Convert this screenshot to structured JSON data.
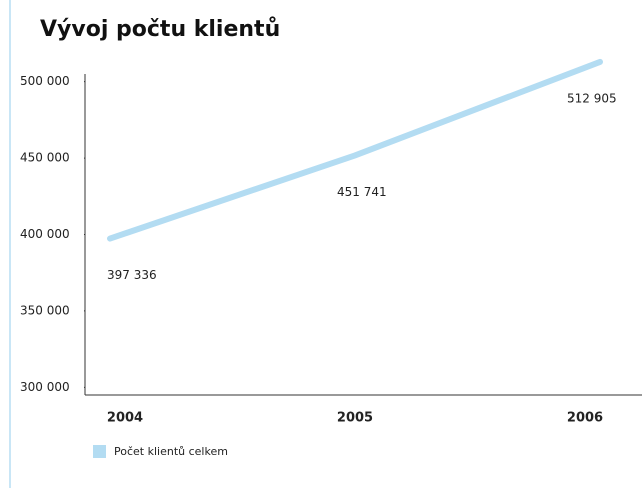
{
  "chart_data": {
    "type": "line",
    "title": "Vývoj počtu klientů",
    "categories": [
      "2004",
      "2005",
      "2006"
    ],
    "series": [
      {
        "name": "Počet klientů celkem",
        "color": "#b3dcf2",
        "values": [
          397336,
          451741,
          512905
        ],
        "value_labels": [
          "397 336",
          "451 741",
          "512 905"
        ]
      }
    ],
    "ylim": [
      295000,
      505000
    ],
    "yticks": [
      {
        "value": 300000,
        "label": "300 000"
      },
      {
        "value": 350000,
        "label": "350 000"
      },
      {
        "value": 400000,
        "label": "400 000"
      },
      {
        "value": 450000,
        "label": "450 000"
      },
      {
        "value": 500000,
        "label": "500 000"
      }
    ]
  }
}
